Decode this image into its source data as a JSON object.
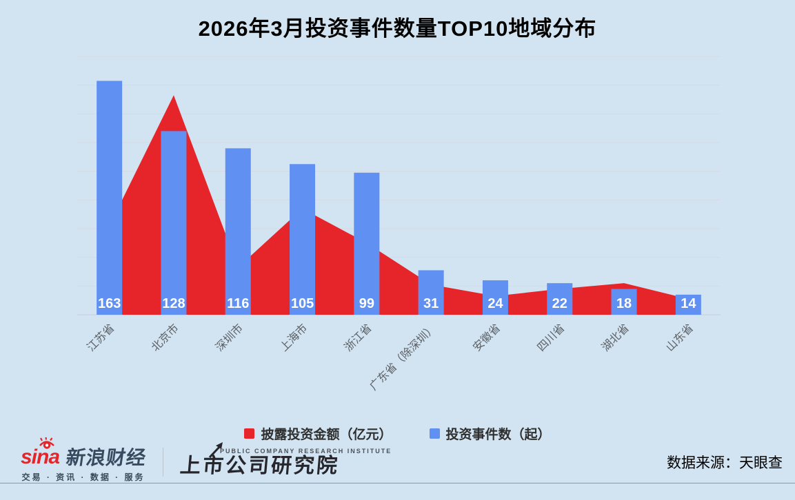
{
  "title": "2026年3月投资事件数量TOP10地域分布",
  "chart_data": {
    "type": "combo-bar-area",
    "title": "2026年3月投资事件数量TOP10地域分布",
    "categories": [
      "江苏省",
      "北京市",
      "深圳市",
      "上海市",
      "浙江省",
      "广东省（除深圳）",
      "安徽省",
      "四川省",
      "湖北省",
      "山东省"
    ],
    "series": [
      {
        "name": "披露投资金额（亿元）",
        "type": "area",
        "color": "#e5252a",
        "values": [
          62,
          153,
          33,
          74,
          50,
          21,
          13,
          18,
          22,
          11
        ],
        "values_estimated": true
      },
      {
        "name": "投资事件数（起）",
        "type": "bar",
        "color": "#6090f2",
        "values": [
          163,
          128,
          116,
          105,
          99,
          31,
          24,
          22,
          18,
          14
        ],
        "values_estimated": false
      }
    ],
    "ylim": [
      0,
      180
    ],
    "y_grid_step": 20,
    "y_axis_labels_visible": false,
    "grid": "horizontal",
    "x_label_rotation_deg": 45,
    "legend_position": "bottom",
    "bar_value_label_position": "inside-bottom"
  },
  "legend": {
    "items": [
      {
        "label": "披露投资金额（亿元）",
        "color": "#e5252a"
      },
      {
        "label": "投资事件数（起）",
        "color": "#6090f2"
      }
    ]
  },
  "footer": {
    "sina_logo_text": "sina",
    "sina_brand": "新浪财经",
    "sina_tagline": "交易 · 资讯 · 数据 · 服务",
    "institute_caption": "PUBLIC COMPANY RESEARCH INSTITUTE",
    "institute_name": "上市公司研究院",
    "source": "数据来源：天眼查"
  },
  "colors": {
    "background": "#d2e4f1",
    "bar_blue": "#6090f2",
    "area_red": "#e5252a",
    "gridline": "#d7dae2",
    "axis_label": "#5d6167",
    "bar_value_label": "#ffffff"
  }
}
